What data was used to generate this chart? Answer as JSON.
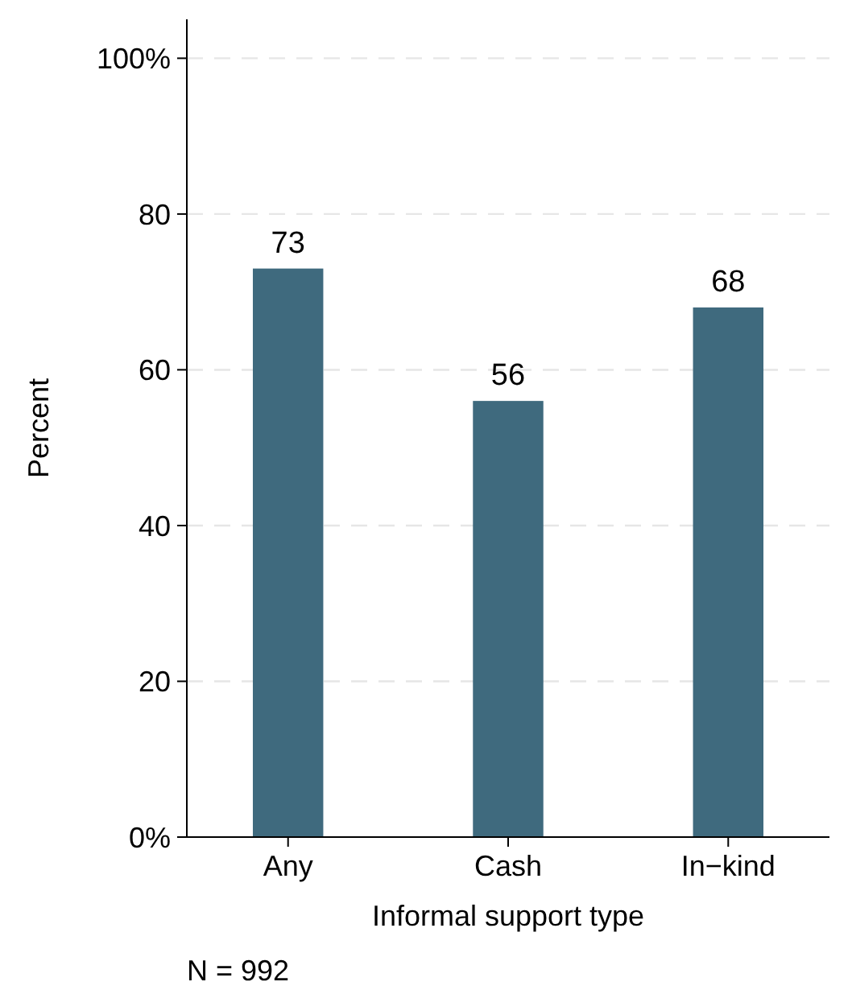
{
  "chart_data": {
    "type": "bar",
    "xlabel": "Informal support type",
    "ylabel": "Percent",
    "categories": [
      "Any",
      "Cash",
      "In−kind"
    ],
    "values": [
      73,
      56,
      68
    ],
    "color": "#3f6a7e",
    "data_labels": true,
    "ylim": [
      0,
      105
    ],
    "yticks": [
      {
        "value": 0,
        "label": "0%"
      },
      20,
      40,
      60,
      80,
      {
        "value": 100,
        "label": "100%"
      }
    ],
    "grid": "y",
    "annotations": [
      "N = 992"
    ]
  }
}
